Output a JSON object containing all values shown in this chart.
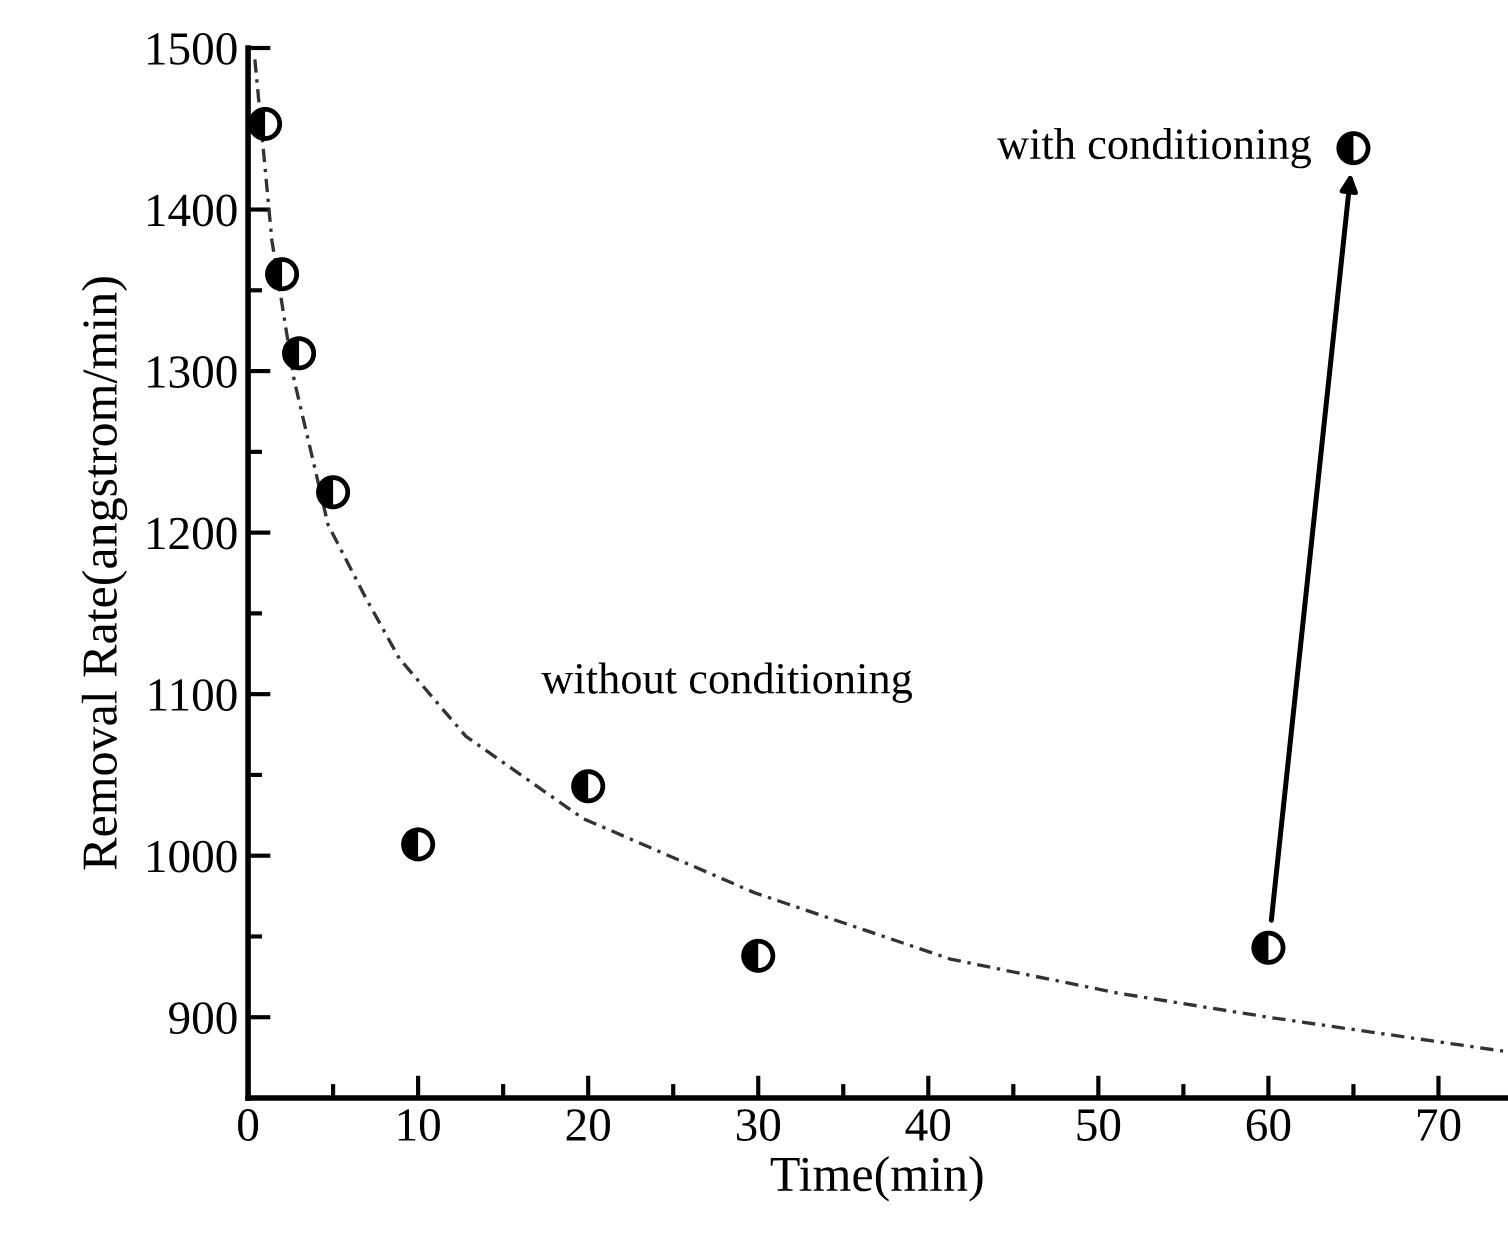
{
  "chart_data": {
    "type": "scatter",
    "xlabel": "Time(min)",
    "ylabel": "Removal Rate(angstrom/min)",
    "xlim": [
      0,
      74
    ],
    "ylim": [
      850,
      1500
    ],
    "xticks": [
      0,
      10,
      20,
      30,
      40,
      50,
      60,
      70
    ],
    "yticks": [
      900,
      1000,
      1100,
      1200,
      1300,
      1400,
      1500
    ],
    "grid": false,
    "series": [
      {
        "marker": "circle",
        "color": "#000000",
        "x": [
          1,
          2,
          3,
          5,
          10,
          20,
          30,
          60,
          65
        ],
        "values": [
          1453,
          1360,
          1311,
          1225,
          1007,
          1043,
          938,
          943,
          1438
        ]
      },
      {
        "type": "line",
        "color": "#333333",
        "line_style": "dashed",
        "x": [
          0.4,
          1.4,
          2.7,
          4.7,
          6.9,
          8.9,
          12.8,
          19.7,
          29.8,
          41.3,
          51.1,
          60,
          73.8
        ],
        "values": [
          1493,
          1381,
          1295,
          1205,
          1160,
          1122,
          1074,
          1023,
          977,
          936,
          915,
          900,
          879
        ]
      }
    ],
    "annotations": [
      {
        "text": "without conditioning",
        "x": 20,
        "y": 1043
      },
      {
        "text": "with conditioning",
        "x": 65,
        "y": 1438
      }
    ]
  }
}
